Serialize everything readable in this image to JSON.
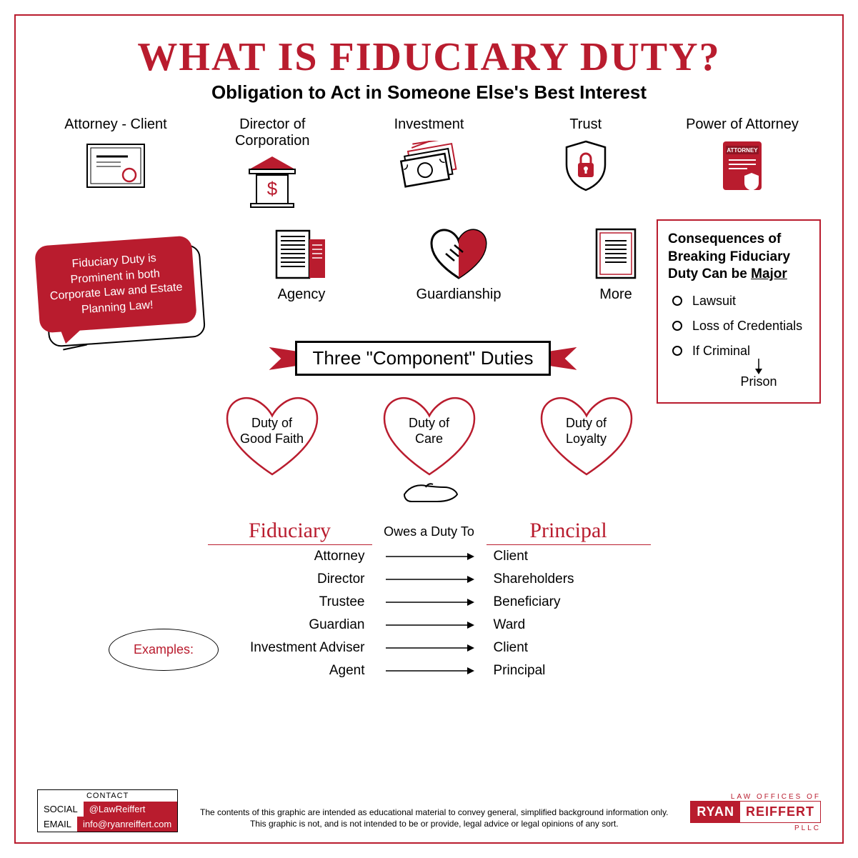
{
  "colors": {
    "accent": "#b91c2e",
    "accent_dark": "#8f1523",
    "text": "#000000",
    "bg": "#ffffff"
  },
  "title": "WHAT IS FIDUCIARY DUTY?",
  "subtitle": "Obligation to Act in Someone Else's Best Interest",
  "relationships_row1": [
    {
      "label": "Attorney - Client",
      "icon": "certificate"
    },
    {
      "label": "Director of  Corporation",
      "icon": "bank-dollar"
    },
    {
      "label": "Investment",
      "icon": "money-stack"
    },
    {
      "label": "Trust",
      "icon": "shield-lock"
    },
    {
      "label": "Power of Attorney",
      "icon": "attorney-doc"
    }
  ],
  "relationships_row2": [
    {
      "label": "Agency",
      "icon": "buildings"
    },
    {
      "label": "Guardianship",
      "icon": "handshake-heart"
    },
    {
      "label": "More",
      "icon": "lined-doc"
    }
  ],
  "speech": "Fiduciary Duty is Prominent in both Corporate Law and Estate Planning Law!",
  "consequences": {
    "title_lines": [
      "Consequences of",
      "Breaking Fiduciary",
      "Duty Can be "
    ],
    "title_emph": "Major",
    "items": [
      "Lawsuit",
      "Loss of Credentials",
      "If Criminal"
    ],
    "arrow_to": "Prison"
  },
  "banner": "Three \"Component\" Duties",
  "hearts": [
    "Duty of\nGood Faith",
    "Duty of\nCare",
    "Duty of\nLoyalty"
  ],
  "table": {
    "left_head": "Fiduciary",
    "mid_head": "Owes a Duty To",
    "right_head": "Principal",
    "rows": [
      {
        "f": "Attorney",
        "p": "Client"
      },
      {
        "f": "Director",
        "p": "Shareholders"
      },
      {
        "f": "Trustee",
        "p": "Beneficiary"
      },
      {
        "f": "Guardian",
        "p": "Ward"
      },
      {
        "f": "Investment Adviser",
        "p": "Client"
      },
      {
        "f": "Agent",
        "p": "Principal"
      }
    ]
  },
  "examples_label": "Examples:",
  "footer": {
    "contact_title": "CONTACT",
    "social_k": "SOCIAL",
    "social_v": "@LawReiffert",
    "email_k": "EMAIL",
    "email_v": "info@ryanreiffert.com",
    "disclaimer": "The contents of this graphic are intended as educational material to convey general, simplified background information only.\nThis graphic is not, and is not intended to be or provide, legal advice or legal opinions of any sort.",
    "logo_top": "LAW OFFICES OF",
    "logo_first": "RYAN",
    "logo_last": "REIFFERT",
    "logo_pllc": "PLLC"
  }
}
